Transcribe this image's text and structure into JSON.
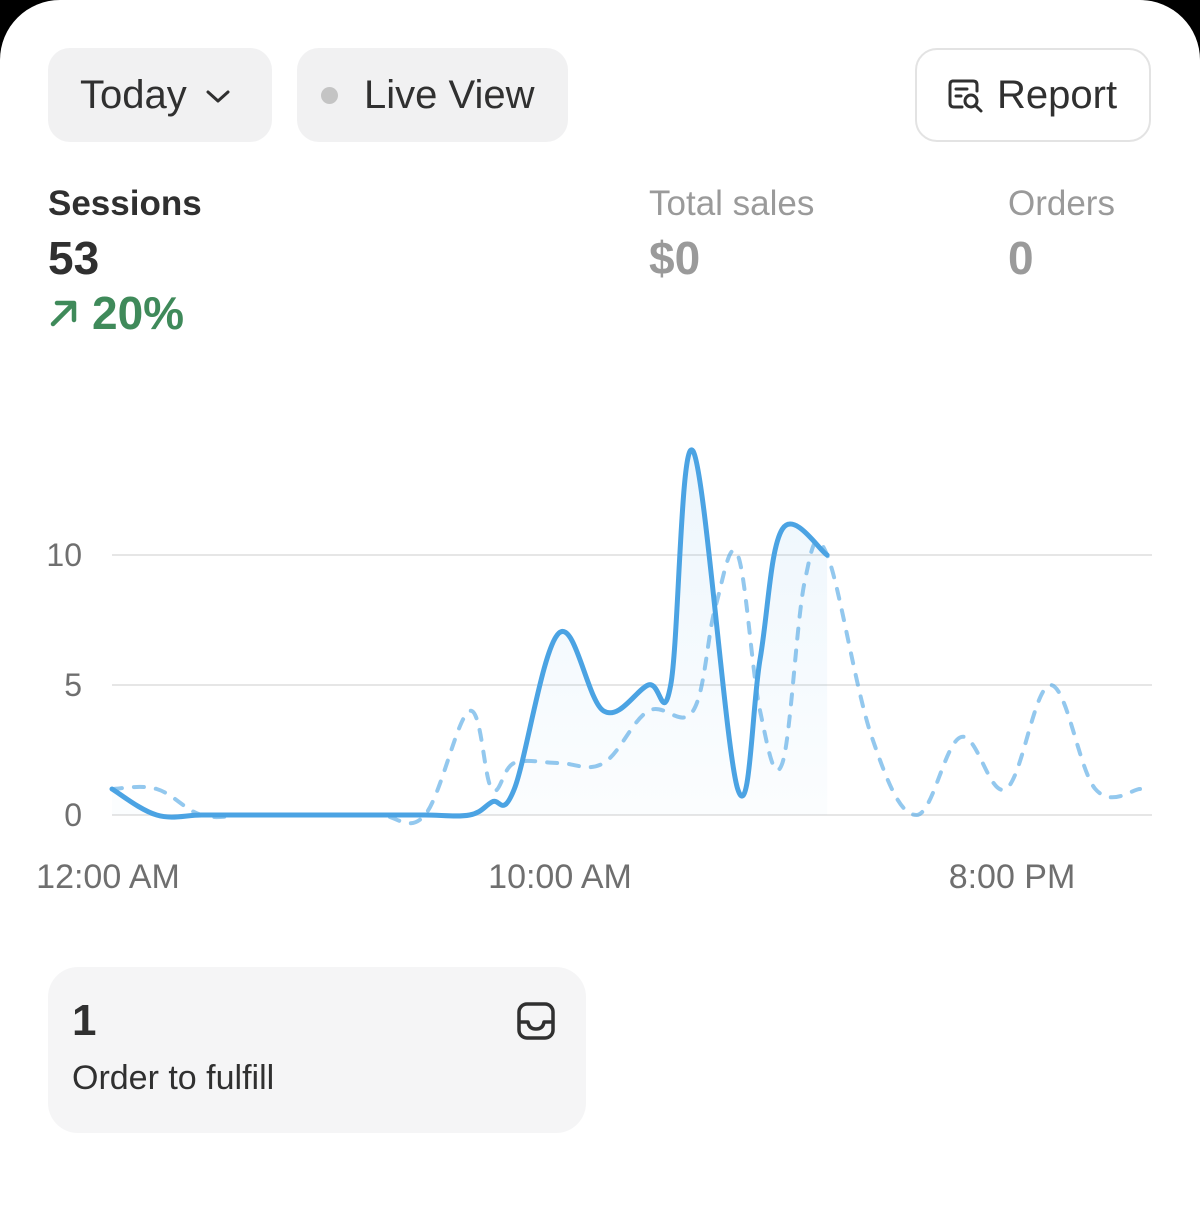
{
  "toolbar": {
    "period_label": "Today",
    "live_label": "Live View",
    "report_label": "Report"
  },
  "metrics": {
    "sessions": {
      "label": "Sessions",
      "value": "53",
      "delta": "20%"
    },
    "total_sales": {
      "label": "Total sales",
      "value": "$0"
    },
    "orders": {
      "label": "Orders",
      "value": "0"
    }
  },
  "colors": {
    "accent": "#4ba3e3",
    "positive": "#3f8a5a",
    "muted": "#9a9a9a"
  },
  "chart_data": {
    "type": "line",
    "x_tick_labels": [
      "12:00 AM",
      "10:00 AM",
      "8:00 PM"
    ],
    "y_tick_labels": [
      "0",
      "5",
      "10"
    ],
    "ylim": [
      0,
      14
    ],
    "xlim": [
      0,
      23
    ],
    "grid": true,
    "series": [
      {
        "style": "solid",
        "x": [
          0,
          1,
          2,
          3,
          4,
          5,
          6,
          7,
          8,
          8.5,
          9,
          10,
          11,
          12,
          12.5,
          13,
          14,
          14.5,
          15,
          16
        ],
        "values": [
          1,
          0,
          0,
          0,
          0,
          0,
          0,
          0,
          0,
          0.5,
          1,
          7,
          4,
          5,
          5,
          14,
          1,
          6,
          11,
          10
        ]
      },
      {
        "style": "dashed",
        "x": [
          0,
          1,
          2,
          3,
          4,
          5,
          6,
          7,
          8,
          8.5,
          9,
          10,
          11,
          12,
          13,
          13.5,
          14,
          14.5,
          15,
          15.5,
          16,
          17,
          18,
          19,
          20,
          21,
          22,
          23
        ],
        "values": [
          1,
          1,
          0,
          0,
          0,
          0,
          0,
          0,
          4,
          1,
          2,
          2,
          2,
          4,
          4,
          8,
          10,
          4,
          2,
          9,
          10,
          3,
          0,
          3,
          1,
          5,
          1,
          1
        ]
      }
    ]
  },
  "fulfill": {
    "count": "1",
    "label": "Order to fulfill"
  }
}
